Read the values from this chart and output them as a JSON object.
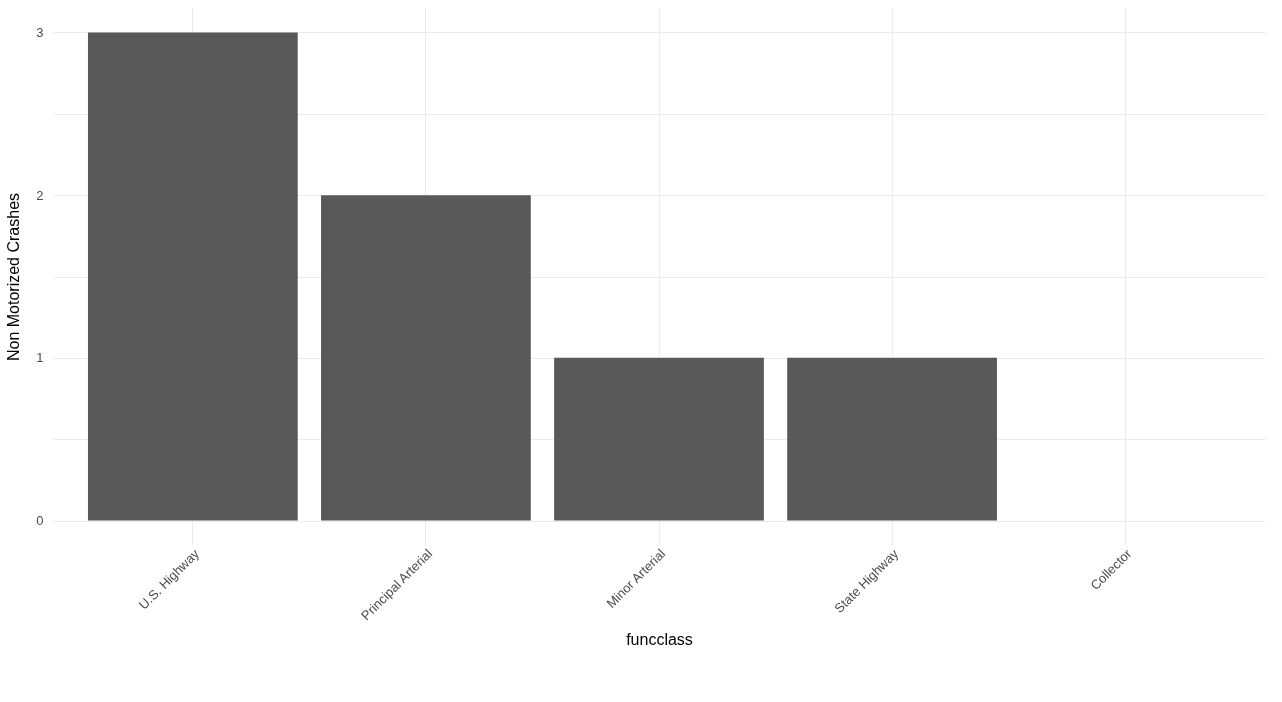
{
  "chart_data": {
    "type": "bar",
    "xlabel": "funcclass",
    "ylabel": "Non Motorized Crashes",
    "categories": [
      "U.S. Highway",
      "Principal Arterial",
      "Minor Arterial",
      "State Highway",
      "Collector"
    ],
    "values": [
      3,
      2,
      1,
      1,
      0
    ],
    "color": "#595959",
    "ylim": [
      -0.15,
      3.15
    ],
    "yticks": [
      0,
      {
        "value": 0.5,
        "label": null
      },
      1,
      {
        "value": 1.5,
        "label": null
      },
      2,
      {
        "value": 2.5,
        "label": null
      },
      3
    ],
    "grid": true
  }
}
